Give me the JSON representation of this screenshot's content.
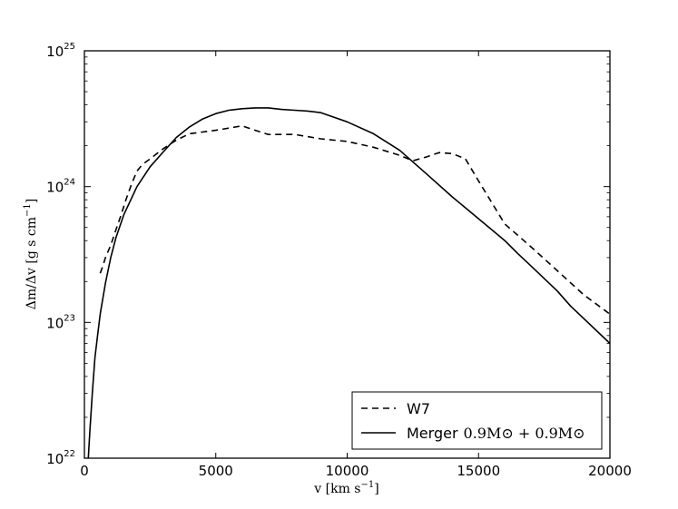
{
  "chart_data": {
    "type": "line",
    "title": "",
    "xlabel": "v [km s⁻¹]",
    "ylabel": "Δm/Δv [g s cm⁻¹]",
    "x_unit_label": {
      "main": "v  [km  s",
      "sup": "−1",
      "end": "]"
    },
    "y_unit_label": {
      "main": "Δm/Δv  [g s cm",
      "sup": "−1",
      "end": "]"
    },
    "xlim": [
      0,
      20000
    ],
    "ylim": [
      1e+22,
      1e+25
    ],
    "yscale": "log",
    "grid": false,
    "legend_position": "lower-right",
    "x_ticks": [
      {
        "value": 0,
        "label": "0"
      },
      {
        "value": 5000,
        "label": "5000"
      },
      {
        "value": 10000,
        "label": "10000"
      },
      {
        "value": 15000,
        "label": "15000"
      },
      {
        "value": 20000,
        "label": "20000"
      }
    ],
    "y_ticks": [
      {
        "value": 1e+22,
        "base": "10",
        "exp": "22"
      },
      {
        "value": 1e+23,
        "base": "10",
        "exp": "23"
      },
      {
        "value": 1e+24,
        "base": "10",
        "exp": "24"
      },
      {
        "value": 1e+25,
        "base": "10",
        "exp": "25"
      }
    ],
    "series": [
      {
        "name": "W7",
        "style": "dashed",
        "color": "#000000",
        "x": [
          600,
          700,
          800,
          1000,
          1200,
          1400,
          1600,
          1800,
          2000,
          2200,
          2500,
          3000,
          3500,
          4000,
          5000,
          6000,
          6500,
          7000,
          8000,
          9000,
          10000,
          11000,
          12000,
          12500,
          13000,
          13500,
          14000,
          14500,
          15000,
          16000,
          17000,
          18000,
          19000,
          20000
        ],
        "y": [
          2.3e+23,
          2.6e+23,
          3e+23,
          3.7e+23,
          4.8e+23,
          6.2e+23,
          8.2e+23,
          1.05e+24,
          1.3e+24,
          1.45e+24,
          1.6e+24,
          1.9e+24,
          2.2e+24,
          2.45e+24,
          2.6e+24,
          2.8e+24,
          2.6e+24,
          2.42e+24,
          2.42e+24,
          2.25e+24,
          2.15e+24,
          1.95e+24,
          1.7e+24,
          1.55e+24,
          1.65e+24,
          1.78e+24,
          1.75e+24,
          1.6e+24,
          1.1e+24,
          5.3e+23,
          3.6e+23,
          2.4e+23,
          1.6e+23,
          1.15e+23
        ]
      },
      {
        "name": "Merger",
        "style": "solid",
        "color": "#000000",
        "x": [
          150,
          200,
          300,
          400,
          500,
          600,
          700,
          800,
          1000,
          1200,
          1500,
          2000,
          2500,
          3000,
          3500,
          4000,
          4500,
          5000,
          5500,
          6000,
          6500,
          7000,
          7500,
          8000,
          8500,
          9000,
          10000,
          11000,
          12000,
          13000,
          14000,
          15000,
          16000,
          16500,
          17000,
          18000,
          18500,
          19000,
          20000
        ],
        "y": [
          1e+22,
          1.5e+22,
          3e+22,
          5.5e+22,
          8e+22,
          1.15e+23,
          1.5e+23,
          1.95e+23,
          3e+23,
          4.2e+23,
          6.2e+23,
          1e+24,
          1.4e+24,
          1.8e+24,
          2.3e+24,
          2.75e+24,
          3.15e+24,
          3.45e+24,
          3.65e+24,
          3.75e+24,
          3.8e+24,
          3.8e+24,
          3.7e+24,
          3.65e+24,
          3.6e+24,
          3.5e+24,
          3e+24,
          2.45e+24,
          1.85e+24,
          1.25e+24,
          8.4e+23,
          5.8e+23,
          4e+23,
          3.2e+23,
          2.6e+23,
          1.7e+23,
          1.32e+23,
          1.07e+23,
          7e+22
        ]
      }
    ],
    "legend": [
      {
        "series": "W7",
        "label": "W7",
        "math": ""
      },
      {
        "series": "Merger",
        "label": "Merger",
        "math": "0.9M⊙ + 0.9M⊙"
      }
    ]
  }
}
